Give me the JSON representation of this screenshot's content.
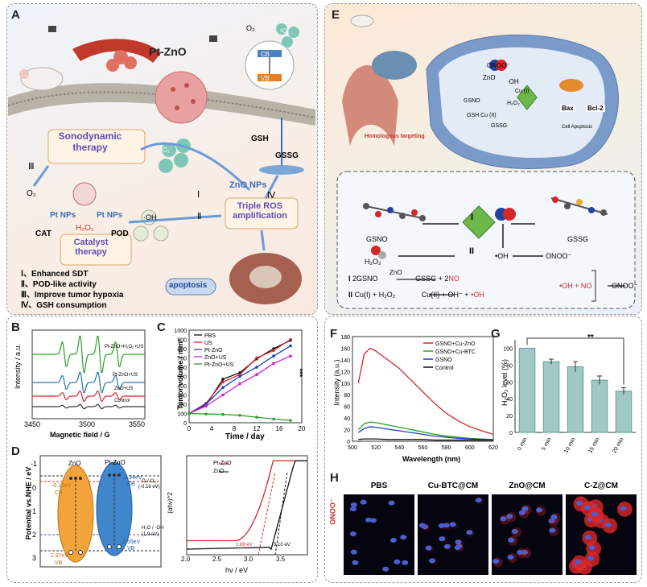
{
  "panel_labels": {
    "A": "A",
    "B": "B",
    "C": "C",
    "D": "D",
    "E": "E",
    "F": "F",
    "G": "G",
    "H": "H"
  },
  "panelA": {
    "title_material": "Pt-ZnO",
    "band_cb": "CB",
    "band_vb": "VB",
    "o2_top": "O₂",
    "singlet_top": "¹O₂",
    "gsh": "GSH",
    "gssg": "GSSG",
    "sonodynamic": "Sonodynamic therapy",
    "singlet": "¹O₂",
    "znonps": "ZnO NPs",
    "triple": "Triple ROS amplification",
    "roman1": "Ⅰ",
    "roman2": "Ⅱ",
    "roman3": "Ⅲ",
    "roman4": "Ⅳ",
    "o2": "O₂",
    "ptnps_left": "Pt NPs",
    "ptnps_right": "Pt NPs",
    "h2o2": "H₂O₂",
    "cat": "CAT",
    "pod": "POD",
    "oh": "·OH",
    "catalyst": "Catalyst therapy",
    "apoptosis": "apoptosis",
    "legend": [
      "Ⅰ、Enhanced SDT",
      "Ⅱ、POD-like activity",
      "Ⅲ、Improve tumor hypoxia",
      "Ⅳ、GSH consumption"
    ]
  },
  "panelB": {
    "ylabel": "Intensity / a.u.",
    "xlabel": "Magnetic field / G",
    "xticks": [
      "3450",
      "3500",
      "3550"
    ],
    "traces": [
      "Pt-ZnO+H₂O₂+US",
      "Pt-ZnO+US",
      "ZnO+US",
      "Control"
    ],
    "colors": [
      "#2ca02c",
      "#1f77b4",
      "#d62728",
      "#333333"
    ]
  },
  "panelC": {
    "ylabel": "Tumor volume / mm³",
    "xlabel": "Time / day",
    "significance": "***",
    "chart_data": {
      "type": "line",
      "x": [
        0,
        3,
        6,
        9,
        12,
        15,
        18
      ],
      "xticks": [
        "0",
        "4",
        "8",
        "12",
        "16",
        "20"
      ],
      "yticks": [
        "0",
        "100",
        "200",
        "300",
        "400",
        "500",
        "600",
        "700",
        "800",
        "900",
        "1000"
      ],
      "xlim": [
        0,
        20
      ],
      "ylim": [
        0,
        1000
      ],
      "series": [
        {
          "name": "PBS",
          "color": "#111111",
          "values": [
            100,
            190,
            470,
            540,
            690,
            800,
            890
          ]
        },
        {
          "name": "US",
          "color": "#d62728",
          "values": [
            100,
            210,
            440,
            520,
            700,
            780,
            900
          ]
        },
        {
          "name": "Pt-ZnO",
          "color": "#1f3fbf",
          "values": [
            100,
            200,
            380,
            500,
            600,
            720,
            830
          ]
        },
        {
          "name": "ZnO+US",
          "color": "#d020d0",
          "values": [
            100,
            180,
            300,
            420,
            520,
            640,
            720
          ]
        },
        {
          "name": "Pt-ZnO+US",
          "color": "#2ca02c",
          "values": [
            100,
            95,
            90,
            80,
            60,
            40,
            25
          ]
        }
      ]
    }
  },
  "panelD": {
    "ylabel": "Potential vs.NHE / eV",
    "yticks": [
      "-1",
      "0",
      "1",
      "2",
      "3"
    ],
    "zno": "ZnO",
    "ptzno": "Pt-ZnO",
    "zno_cb": "-0.13eV",
    "zno_cb_label": "CB",
    "zno_vb": "2.97eV",
    "zno_vb_label": "VB",
    "pt_cb": "-0.34eV",
    "pt_cb_label": "CB",
    "pt_vb": "2.55eV",
    "pt_vb_label": "VB",
    "o2_couple": "O₂/·O₂⁻",
    "o2_value": "(-0.16 eV)",
    "h2o_couple": "H₂O / ·OH",
    "h2o_value": "(1.9 eV)",
    "tauc_ylabel": "(αhν)^2",
    "tauc_xlabel": "hν / eV",
    "tauc_xticks": [
      "2.0",
      "2.5",
      "3.0",
      "3.5"
    ],
    "tauc_legend": [
      "Pt-ZnO",
      "ZnO"
    ],
    "tauc_colors": [
      "#d62728",
      "#111111"
    ],
    "gap_pt": "2.89 eV",
    "gap_zno": "3.10 eV"
  },
  "panelE": {
    "homologous": "Homologous targeting",
    "no": "NO",
    "onoo": "ONOO⁻",
    "zno": "ZnO",
    "oh": "·OH",
    "cu1": "Cu (I)",
    "h2o2": "H₂O₂",
    "gsno": "GSNO",
    "gsh_cu": "GSH Cu (II)",
    "gssg": "GSSG",
    "bax": "Bax",
    "bcl2": "Bcl-2",
    "cell_apoptosis": "Cell Apoptosis",
    "scheme_gsno": "GSNO",
    "scheme_gssg": "GSSG",
    "scheme_roman1": "I",
    "scheme_roman2": "II",
    "scheme_h2o2": "H₂O₂",
    "scheme_oh": "•OH",
    "scheme_onoo": "ONOO⁻",
    "eq1_label": "I",
    "eq1_left": "2GSNO",
    "eq1_cat": "ZnO",
    "eq1_right_a": "GSSG + 2",
    "eq1_right_b": "NO",
    "eq2_label": "II",
    "eq2_left": "Cu(I) + H₂O₂",
    "eq2_right_a": "Cu(II) + OH⁻ + ",
    "eq2_right_b": "•OH",
    "combo": "•OH + NO",
    "combo_out": "ONOO⁻"
  },
  "panelF": {
    "ylabel": "Intensity (a.u.)",
    "xlabel": "Wavelength (nm)",
    "chart_data": {
      "type": "line",
      "xticks": [
        "500",
        "520",
        "540",
        "560",
        "580",
        "600",
        "620"
      ],
      "yticks": [
        "0",
        "20",
        "40",
        "60",
        "80",
        "100",
        "120",
        "140",
        "160",
        "180"
      ],
      "xlim": [
        500,
        620
      ],
      "ylim": [
        0,
        180
      ],
      "x": [
        505,
        510,
        515,
        520,
        530,
        540,
        550,
        560,
        570,
        580,
        590,
        600,
        610,
        620
      ],
      "series": [
        {
          "name": "GSNO+Cu-ZnO",
          "color": "#d62728",
          "values": [
            100,
            150,
            160,
            155,
            140,
            125,
            105,
            85,
            65,
            48,
            35,
            25,
            18,
            12
          ]
        },
        {
          "name": "GSNO+Cu-BTC",
          "color": "#2ca02c",
          "values": [
            20,
            30,
            33,
            32,
            28,
            24,
            20,
            16,
            12,
            9,
            7,
            5,
            4,
            3
          ]
        },
        {
          "name": "GSNO",
          "color": "#1f3fbf",
          "values": [
            15,
            22,
            25,
            24,
            21,
            18,
            15,
            12,
            9,
            7,
            5,
            4,
            3,
            2
          ]
        },
        {
          "name": "Control",
          "color": "#111111",
          "values": [
            3,
            4,
            4,
            4,
            3,
            3,
            3,
            3,
            2,
            2,
            2,
            2,
            2,
            2
          ]
        }
      ]
    }
  },
  "panelG": {
    "ylabel": "H₂O₂ level (%)",
    "significance": "**",
    "chart_data": {
      "type": "bar",
      "categories": [
        "0 min",
        "5 min",
        "10 min",
        "15 min",
        "20 min"
      ],
      "values": [
        100,
        84,
        78,
        62,
        49
      ],
      "errors": [
        0,
        3,
        6,
        5,
        4
      ],
      "yticks": [
        "0",
        "20",
        "40",
        "60",
        "80",
        "100"
      ],
      "ylim": [
        0,
        110
      ]
    }
  },
  "panelH": {
    "ylabel": "ONOO⁻",
    "images": [
      "PBS",
      "Cu-BTC@CM",
      "ZnO@CM",
      "C-Z@CM"
    ]
  }
}
